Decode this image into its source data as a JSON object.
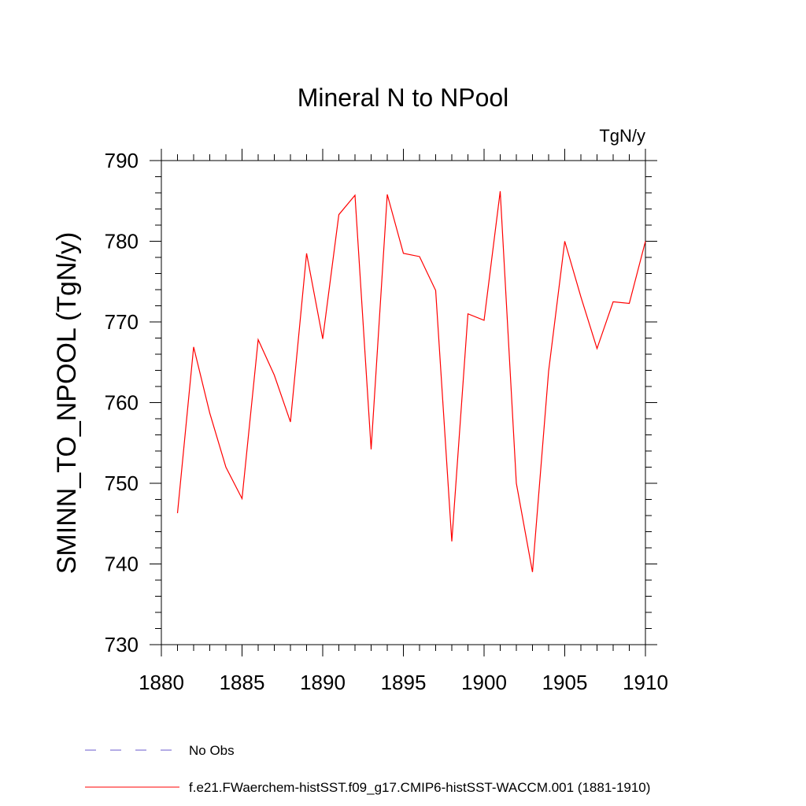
{
  "chart_data": {
    "type": "line",
    "title": "Mineral N to NPool",
    "units_label": "TgN/y",
    "ylabel": "SMINN_TO_NPOOL  (TgN/y)",
    "xlabel": "",
    "xlim": [
      1880,
      1910
    ],
    "ylim": [
      730,
      790
    ],
    "x_ticks": [
      1880,
      1885,
      1890,
      1895,
      1900,
      1905,
      1910
    ],
    "y_ticks": [
      730,
      740,
      750,
      760,
      770,
      780,
      790
    ],
    "x_minor_step": 1,
    "y_minor_step": 2,
    "grid": false,
    "legend_position": "bottom",
    "series": [
      {
        "name": "f.e21.FWaerchem-histSST.f09_g17.CMIP6-histSST-WACCM.001 (1881-1910)",
        "color": "#ff0000",
        "style": "solid",
        "x": [
          1881,
          1882,
          1883,
          1884,
          1885,
          1886,
          1887,
          1888,
          1889,
          1890,
          1891,
          1892,
          1893,
          1894,
          1895,
          1896,
          1897,
          1898,
          1899,
          1900,
          1901,
          1902,
          1903,
          1904,
          1905,
          1906,
          1907,
          1908,
          1909,
          1910
        ],
        "y": [
          746.3,
          766.9,
          758.7,
          752.0,
          748.1,
          767.8,
          763.4,
          757.6,
          778.5,
          767.9,
          783.3,
          785.7,
          754.2,
          785.8,
          778.5,
          778.1,
          773.9,
          742.8,
          771.0,
          770.2,
          786.2,
          750.0,
          739.0,
          763.9,
          780.0,
          773.1,
          766.7,
          772.5,
          772.3,
          780.0
        ]
      }
    ],
    "legend": [
      {
        "label": "No Obs",
        "color": "#6a5acd",
        "style": "dashed"
      },
      {
        "label": "f.e21.FWaerchem-histSST.f09_g17.CMIP6-histSST-WACCM.001 (1881-1910)",
        "color": "#ff0000",
        "style": "solid"
      }
    ]
  }
}
